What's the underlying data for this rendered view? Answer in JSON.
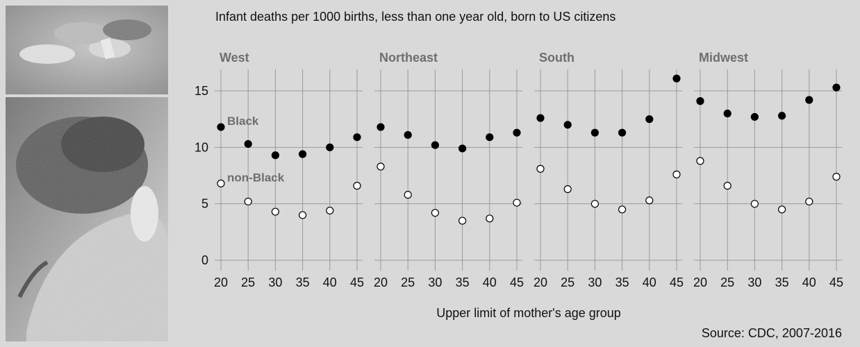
{
  "chart_data": {
    "type": "scatter",
    "title": "Infant deaths per 1000 births, less than one year old, born to US citizens",
    "xlabel": "Upper limit of mother's age group",
    "source": "Source: CDC, 2007-2016",
    "x": [
      20,
      25,
      30,
      35,
      40,
      45
    ],
    "ylim": [
      -1,
      17
    ],
    "yticks": [
      0,
      5,
      10,
      15
    ],
    "grid": true,
    "series_labels": [
      "Black",
      "non-Black"
    ],
    "panels": [
      {
        "title": "West",
        "series": [
          {
            "name": "Black",
            "values": [
              11.8,
              10.3,
              9.3,
              9.4,
              10.0,
              10.9
            ]
          },
          {
            "name": "non-Black",
            "values": [
              6.8,
              5.2,
              4.3,
              4.0,
              4.4,
              6.6
            ]
          }
        ]
      },
      {
        "title": "Northeast",
        "series": [
          {
            "name": "Black",
            "values": [
              11.8,
              11.1,
              10.2,
              9.9,
              10.9,
              11.3
            ]
          },
          {
            "name": "non-Black",
            "values": [
              8.3,
              5.8,
              4.2,
              3.5,
              3.7,
              5.1
            ]
          }
        ]
      },
      {
        "title": "South",
        "series": [
          {
            "name": "Black",
            "values": [
              12.6,
              12.0,
              11.3,
              11.3,
              12.5,
              16.1
            ]
          },
          {
            "name": "non-Black",
            "values": [
              8.1,
              6.3,
              5.0,
              4.5,
              5.3,
              7.6
            ]
          }
        ]
      },
      {
        "title": "Midwest",
        "series": [
          {
            "name": "Black",
            "values": [
              14.1,
              13.0,
              12.7,
              12.8,
              14.2,
              15.3
            ]
          },
          {
            "name": "non-Black",
            "values": [
              8.8,
              6.6,
              5.0,
              4.5,
              5.2,
              7.4
            ]
          }
        ]
      }
    ],
    "colors": {
      "background": "#d9d9d9",
      "grid": "#9a9a9a",
      "black_marker": "#000000",
      "open_marker": "#ffffff"
    }
  }
}
